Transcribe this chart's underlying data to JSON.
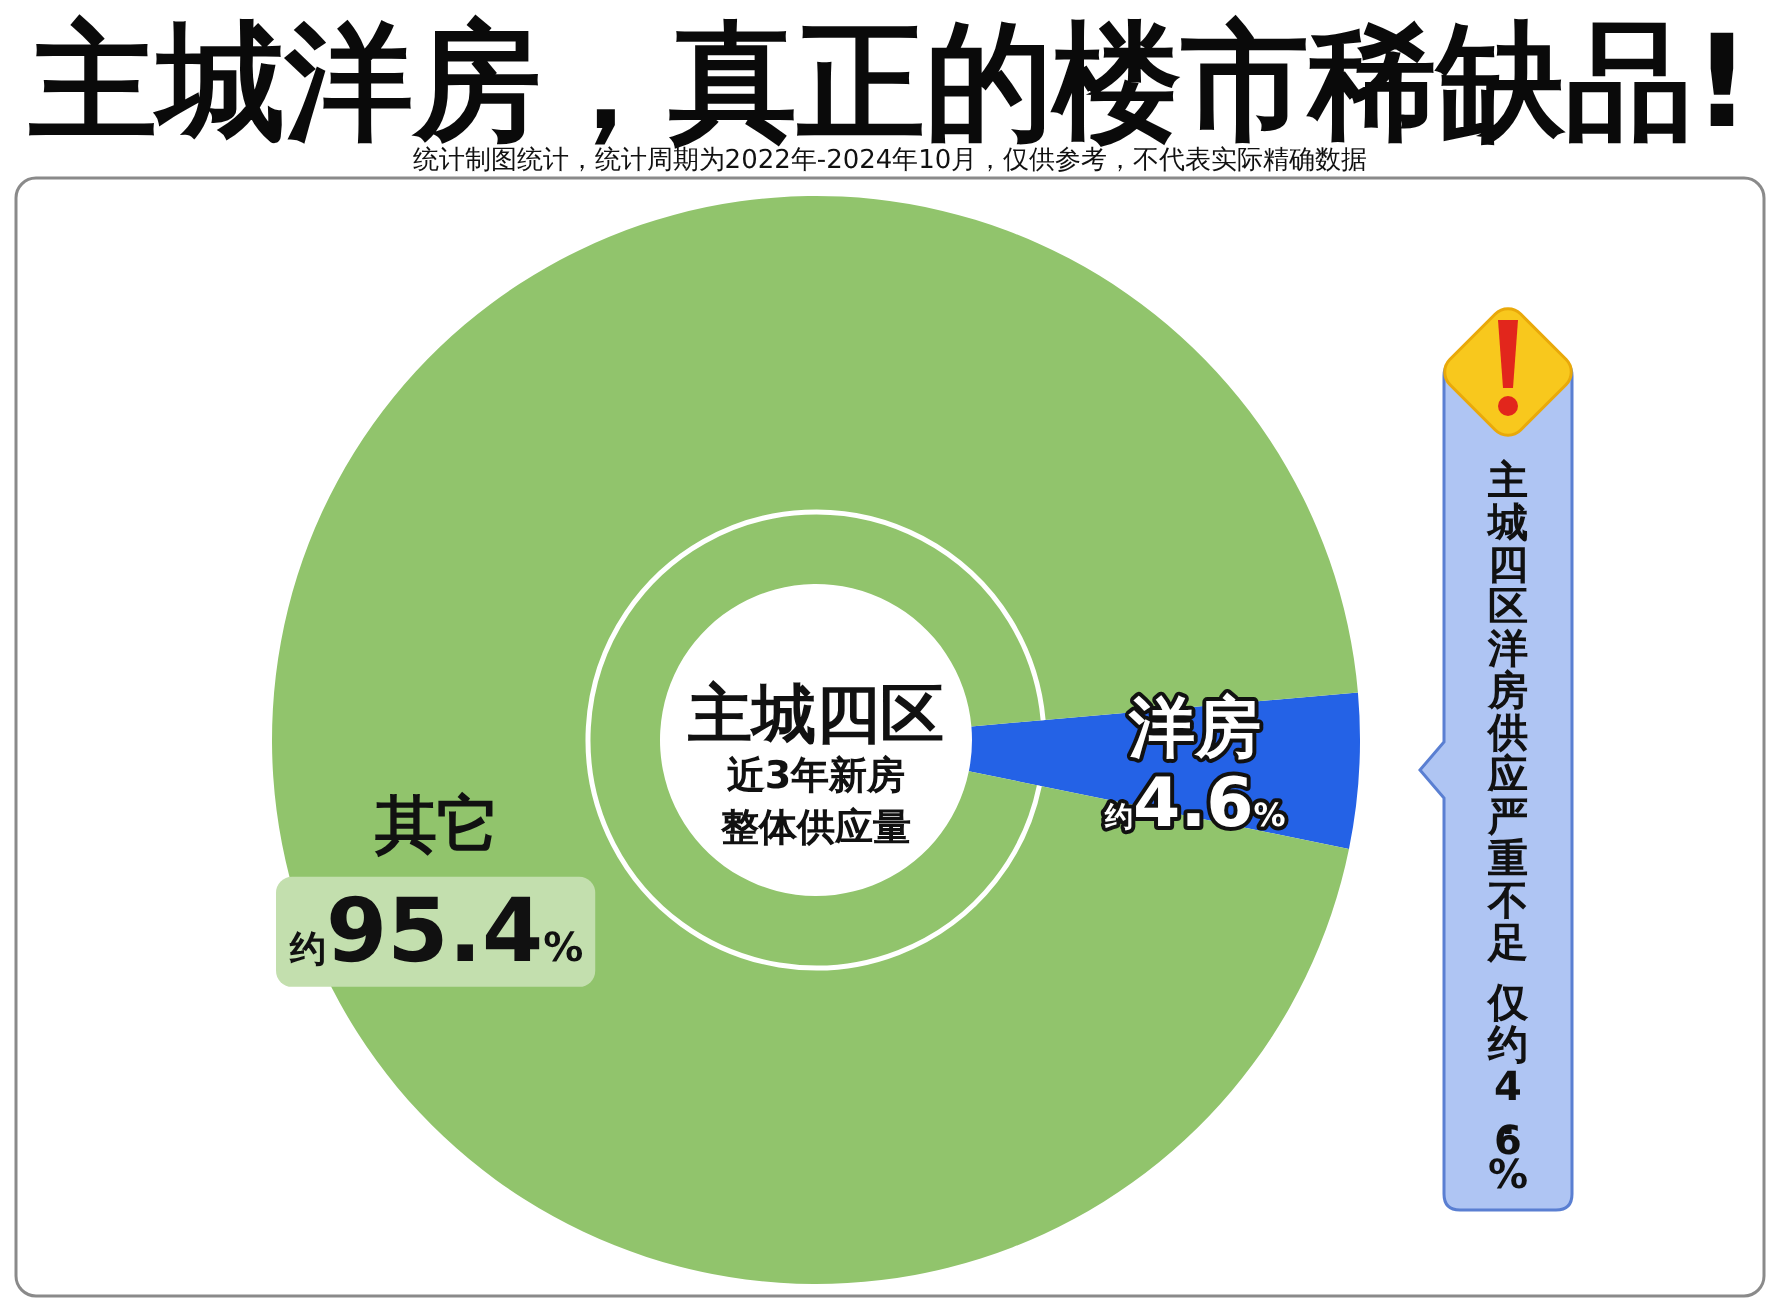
{
  "chart_data": {
    "type": "donut",
    "title": "主城洋房，真正的楼市稀缺品!",
    "subtitle": "统计制图统计，统计周期为2022年-2024年10月，仅供参考，不代表实际精确数据",
    "categories": [
      "洋房",
      "其它"
    ],
    "values": [
      4.6,
      95.4
    ],
    "colors": [
      "#2462e6",
      "#91c46c"
    ],
    "value_labels": [
      "约4.6%",
      "约95.4%"
    ],
    "annotations": [
      "主城四区",
      "近3年新房",
      "整体供应量",
      "主城四区洋房供应严重不足",
      "仅约4.6%"
    ]
  }
}
